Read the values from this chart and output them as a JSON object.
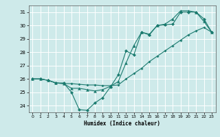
{
  "title": "",
  "xlabel": "Humidex (Indice chaleur)",
  "bg_color": "#ceeaea",
  "grid_color": "#ffffff",
  "line_color": "#1a7a6e",
  "marker_color": "#1a7a6e",
  "xlim": [
    -0.5,
    23.5
  ],
  "ylim": [
    23.5,
    31.5
  ],
  "xticks": [
    0,
    1,
    2,
    3,
    4,
    5,
    6,
    7,
    8,
    9,
    10,
    11,
    12,
    13,
    14,
    15,
    16,
    17,
    18,
    19,
    20,
    21,
    22,
    23
  ],
  "yticks": [
    24,
    25,
    26,
    27,
    28,
    29,
    30,
    31
  ],
  "series1_x": [
    0,
    1,
    2,
    3,
    4,
    5,
    6,
    7,
    8,
    9,
    10,
    11,
    12,
    13,
    14,
    15,
    16,
    17,
    18,
    19,
    20,
    21,
    22,
    23
  ],
  "series1_y": [
    26.0,
    26.0,
    25.9,
    25.7,
    25.7,
    25.0,
    23.7,
    23.65,
    24.2,
    24.6,
    25.4,
    26.3,
    28.1,
    27.8,
    29.5,
    29.3,
    30.0,
    30.05,
    30.1,
    31.0,
    31.0,
    31.0,
    30.5,
    29.5
  ],
  "series2_x": [
    0,
    1,
    2,
    3,
    4,
    5,
    6,
    7,
    8,
    9,
    10,
    11,
    12,
    13,
    14,
    15,
    16,
    17,
    18,
    19,
    20,
    21,
    22,
    23
  ],
  "series2_y": [
    26.0,
    26.0,
    25.9,
    25.7,
    25.65,
    25.65,
    25.6,
    25.55,
    25.55,
    25.5,
    25.5,
    25.55,
    26.0,
    26.4,
    26.8,
    27.3,
    27.7,
    28.1,
    28.5,
    28.9,
    29.3,
    29.6,
    29.85,
    29.5
  ],
  "series3_x": [
    0,
    1,
    2,
    3,
    4,
    5,
    6,
    7,
    8,
    9,
    10,
    11,
    12,
    13,
    14,
    15,
    16,
    17,
    18,
    19,
    20,
    21,
    22,
    23
  ],
  "series3_y": [
    26.0,
    26.0,
    25.9,
    25.7,
    25.65,
    25.3,
    25.3,
    25.2,
    25.1,
    25.2,
    25.45,
    25.8,
    27.2,
    28.5,
    29.5,
    29.35,
    30.0,
    30.1,
    30.5,
    31.1,
    31.1,
    31.0,
    30.3,
    29.5
  ]
}
